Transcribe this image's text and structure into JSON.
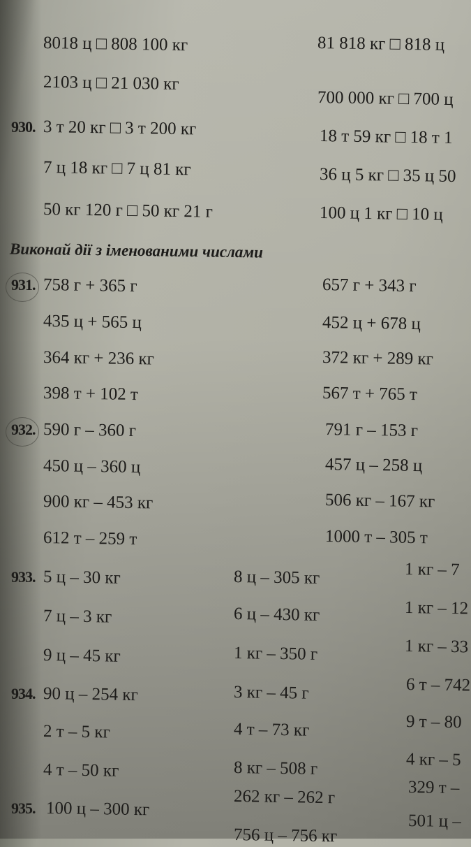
{
  "heading": "Виконай дії з іменованими числами",
  "exercises": [
    {
      "number": "",
      "rows": [
        [
          "8018 ц □ 808 100 кг",
          "81 818 кг □ 818 ц"
        ],
        [
          "2103 ц □ 21 030 кг",
          "700 000 кг □ 700 ц"
        ]
      ]
    },
    {
      "number": "930.",
      "rows": [
        [
          "3 т 20 кг □ 3 т 200 кг",
          "18 т 59 кг □ 18 т 1"
        ],
        [
          "7 ц 18 кг □ 7 ц 81 кг",
          "36 ц 5 кг □ 35 ц 50"
        ],
        [
          "50 кг 120 г □ 50 кг 21 г",
          "100 ц 1 кг □ 10 ц"
        ]
      ]
    },
    {
      "number": "931.",
      "rows": [
        [
          "758 г + 365 г",
          "657 г + 343 г"
        ],
        [
          "435 ц + 565 ц",
          "452 ц + 678 ц"
        ],
        [
          "364 кг + 236 кг",
          "372 кг + 289 кг"
        ],
        [
          "398 т + 102 т",
          "567 т + 765 т"
        ]
      ]
    },
    {
      "number": "932.",
      "rows": [
        [
          "590 г – 360 г",
          "791 г – 153 г"
        ],
        [
          "450 ц – 360 ц",
          "457 ц – 258 ц"
        ],
        [
          "900 кг – 453 кг",
          "506 кг – 167 кг"
        ],
        [
          "612 т – 259 т",
          "1000 т – 305 т"
        ]
      ]
    },
    {
      "number": "933.",
      "rows": [
        [
          "5 ц – 30 кг",
          "8 ц – 305 кг",
          "1 кг – 7"
        ],
        [
          "7 ц – 3 кг",
          "6 ц – 430 кг",
          "1 кг – 12"
        ],
        [
          "9 ц – 45 кг",
          "1 кг – 350 г",
          "1 кг – 33"
        ]
      ]
    },
    {
      "number": "934.",
      "rows": [
        [
          "90 ц – 254 кг",
          "3 кг – 45 г",
          "6 т – 742"
        ],
        [
          "2 т – 5 кг",
          "4 т – 73 кг",
          "9 т – 80"
        ],
        [
          "4 т – 50 кг",
          "8 кг – 508 г",
          "4 кг – 5"
        ]
      ]
    },
    {
      "number": "935.",
      "rows": [
        [
          "100 ц – 300 кг",
          "262 кг – 262 г",
          "329 т –"
        ],
        [
          "",
          "756 ц – 756 кг",
          "501 ц –"
        ]
      ]
    }
  ]
}
